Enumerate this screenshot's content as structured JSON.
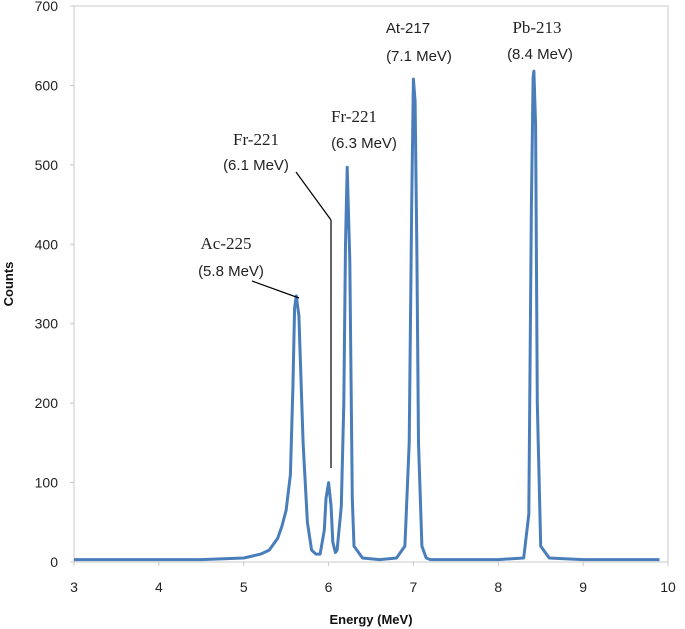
{
  "chart_data": {
    "type": "line",
    "xlabel": "Energy (MeV)",
    "ylabel": "Counts",
    "xlim": [
      3,
      10
    ],
    "ylim": [
      0,
      700
    ],
    "x_ticks": [
      "3",
      "4",
      "5",
      "6",
      "7",
      "8",
      "9",
      "10"
    ],
    "y_ticks": [
      "0",
      "100",
      "200",
      "300",
      "400",
      "500",
      "600",
      "700"
    ],
    "grid": false,
    "series_color": "#4a7ebb",
    "peaks": [
      {
        "x": 5.62,
        "y": 335
      },
      {
        "x": 6.0,
        "y": 100
      },
      {
        "x": 6.22,
        "y": 497
      },
      {
        "x": 7.02,
        "y": 608
      },
      {
        "x": 8.42,
        "y": 618
      }
    ],
    "series": [
      {
        "x": [
          3.0,
          3.5,
          4.0,
          4.5,
          5.0,
          5.2,
          5.3,
          5.4,
          5.45,
          5.5,
          5.55,
          5.58,
          5.6,
          5.62,
          5.65,
          5.7,
          5.75,
          5.8,
          5.85,
          5.9,
          5.95,
          5.97,
          6.0,
          6.03,
          6.05,
          6.08,
          6.1,
          6.15,
          6.18,
          6.2,
          6.22,
          6.25,
          6.28,
          6.3,
          6.4,
          6.6,
          6.8,
          6.9,
          6.95,
          6.98,
          7.0,
          7.02,
          7.04,
          7.06,
          7.1,
          7.15,
          7.2,
          7.5,
          8.0,
          8.3,
          8.36,
          8.39,
          8.41,
          8.42,
          8.44,
          8.46,
          8.5,
          8.6,
          9.0,
          9.5,
          9.9
        ],
        "y": [
          3,
          3,
          3,
          3,
          5,
          10,
          15,
          30,
          45,
          65,
          110,
          220,
          320,
          335,
          310,
          150,
          50,
          15,
          10,
          10,
          40,
          80,
          100,
          70,
          25,
          12,
          15,
          70,
          200,
          400,
          497,
          380,
          80,
          20,
          5,
          3,
          5,
          20,
          150,
          450,
          608,
          580,
          400,
          150,
          20,
          5,
          3,
          3,
          3,
          5,
          60,
          450,
          610,
          618,
          550,
          200,
          20,
          5,
          3,
          3,
          3
        ]
      }
    ],
    "annotations": [
      {
        "isotope": "Ac-225",
        "energy": "(5.8 MeV)"
      },
      {
        "isotope": "Fr-221",
        "energy": "(6.1 MeV)"
      },
      {
        "isotope": "Fr-221",
        "energy": "(6.3 MeV)"
      },
      {
        "isotope": "At-217",
        "energy": "(7.1 MeV)"
      },
      {
        "isotope": "Pb-213",
        "energy": "(8.4 MeV)"
      }
    ]
  }
}
